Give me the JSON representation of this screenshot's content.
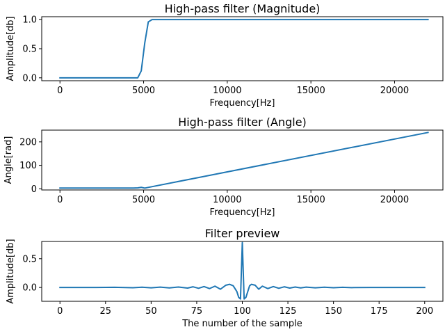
{
  "colors": {
    "line": "#1f77b4"
  },
  "chart_data": [
    {
      "type": "line",
      "title": "High-pass filter (Magnitude)",
      "xlabel": "Frequency[Hz]",
      "ylabel": "Amplitude[db]",
      "xlim": [
        -1090,
        22890
      ],
      "ylim": [
        -0.05,
        1.05
      ],
      "xticks": [
        0,
        5000,
        10000,
        15000,
        20000
      ],
      "yticks": [
        0.0,
        0.5,
        1.0
      ],
      "ytick_labels": [
        "0.0",
        "0.5",
        "1.0"
      ],
      "grid": false,
      "series": [
        {
          "x": [
            0,
            4650,
            4860,
            5070,
            5280,
            5500,
            22000
          ],
          "y": [
            0,
            0.0,
            0.12,
            0.6,
            0.96,
            1.0,
            1.0
          ]
        }
      ]
    },
    {
      "type": "line",
      "title": "High-pass filter (Angle)",
      "xlabel": "Frequency[Hz]",
      "ylabel": "Angle[rad]",
      "xlim": [
        -1090,
        22890
      ],
      "ylim": [
        -5,
        250
      ],
      "xticks": [
        0,
        5000,
        10000,
        15000,
        20000
      ],
      "yticks": [
        0,
        100,
        200
      ],
      "ytick_labels": [
        "0",
        "100",
        "200"
      ],
      "grid": false,
      "series": [
        {
          "x": [
            0,
            4400,
            4650,
            4860,
            5070,
            22000
          ],
          "y": [
            3,
            3,
            4,
            6,
            3,
            240
          ]
        }
      ]
    },
    {
      "type": "line",
      "title": "Filter preview",
      "xlabel": "The number of the sample",
      "ylabel": "Amplitude[db]",
      "xlim": [
        -10,
        210
      ],
      "ylim": [
        -0.24,
        0.8
      ],
      "xticks": [
        0,
        25,
        50,
        75,
        100,
        125,
        150,
        175,
        200
      ],
      "yticks": [
        0.0,
        0.5
      ],
      "ytick_labels": [
        "0.0",
        "0.5"
      ],
      "grid": false,
      "series": [
        {
          "x": [
            0,
            20,
            30,
            40,
            45,
            50,
            55,
            60,
            65,
            70,
            73,
            76,
            79,
            82,
            85,
            88,
            91,
            93,
            95,
            97,
            98,
            99,
            100,
            101,
            102,
            103,
            104,
            105,
            107,
            109,
            111,
            114,
            117,
            120,
            123,
            126,
            129,
            132,
            135,
            140,
            145,
            150,
            155,
            160,
            170,
            180,
            200
          ],
          "y": [
            0,
            0,
            0.003,
            -0.004,
            0.005,
            -0.005,
            0.006,
            -0.007,
            0.008,
            -0.01,
            0.012,
            -0.014,
            0.016,
            -0.019,
            0.023,
            -0.03,
            0.04,
            0.055,
            0.03,
            -0.07,
            -0.17,
            -0.2,
            0.78,
            -0.2,
            -0.17,
            -0.07,
            0.03,
            0.055,
            0.04,
            -0.03,
            0.023,
            -0.019,
            0.016,
            -0.014,
            0.012,
            -0.01,
            0.008,
            -0.007,
            0.006,
            -0.005,
            0.005,
            -0.004,
            0.003,
            -0.002,
            0.001,
            0,
            0
          ]
        }
      ]
    }
  ]
}
